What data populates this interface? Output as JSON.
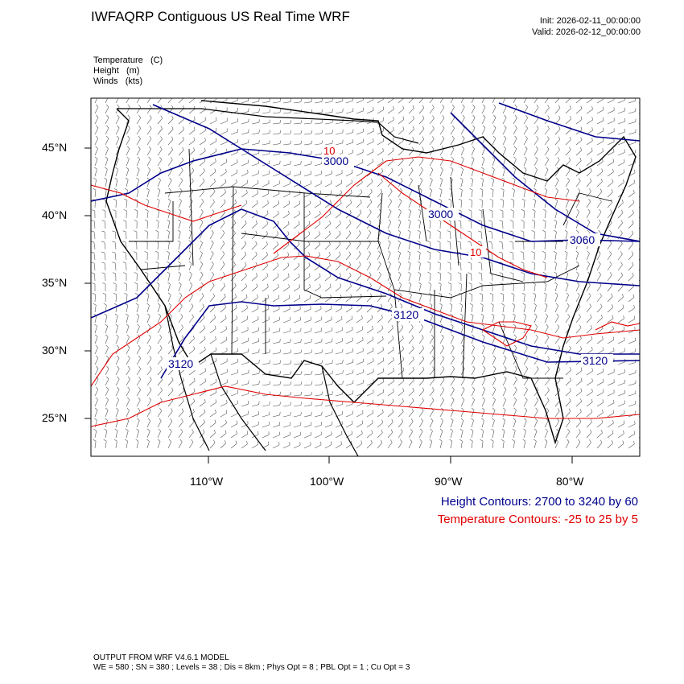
{
  "header": {
    "title": "IWFAQRP Contiguous US Real Time WRF",
    "init": "Init: 2026-02-11_00:00:00",
    "valid": "Valid: 2026-02-12_00:00:00"
  },
  "fields": [
    {
      "name": "Temperature",
      "unit": "(C)"
    },
    {
      "name": "Height",
      "unit": "(m)"
    },
    {
      "name": "Winds",
      "unit": "(kts)"
    }
  ],
  "axes": {
    "lat_labels": [
      "45°N",
      "40°N",
      "35°N",
      "30°N",
      "25°N"
    ],
    "lon_labels": [
      "110°W",
      "100°W",
      "90°W",
      "80°W"
    ]
  },
  "contour_labels": {
    "height": [
      "3000",
      "3000",
      "3120",
      "3120",
      "3120",
      "3060"
    ],
    "temperature": [
      "10",
      "10"
    ]
  },
  "notes": {
    "height": "Height Contours: 2700 to 3240 by 60",
    "temperature": "Temperature Contours: -25 to 25 by 5"
  },
  "colors": {
    "height_contour": "#00008b",
    "temperature_contour": "#e00000",
    "boundaries": "#000000",
    "wind_barbs": "#555555"
  },
  "footer": {
    "line1": "OUTPUT FROM WRF V4.6.1 MODEL",
    "line2": "WE = 580 ; SN = 380 ; Levels = 38 ; Dis = 8km ; Phys Opt = 8 ; PBL Opt = 1 ; Cu Opt = 3"
  }
}
